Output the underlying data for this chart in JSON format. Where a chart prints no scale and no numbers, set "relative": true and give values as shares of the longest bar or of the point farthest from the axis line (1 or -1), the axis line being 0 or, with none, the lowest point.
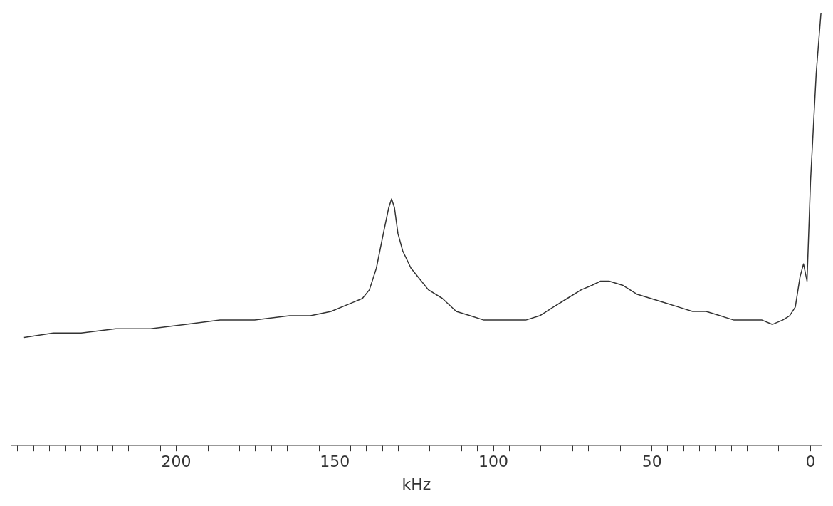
{
  "chart_data": {
    "type": "line",
    "xlabel": "kHz",
    "relative": true,
    "color": "#333333",
    "marker": "none",
    "grid": false,
    "legend": false,
    "xlim": [
      252,
      -3.5
    ],
    "xticks": [
      {
        "value": 250,
        "label": null
      },
      {
        "value": 245,
        "label": null
      },
      {
        "value": 240,
        "label": null
      },
      {
        "value": 235,
        "label": null
      },
      {
        "value": 230,
        "label": null
      },
      {
        "value": 225,
        "label": null
      },
      {
        "value": 220,
        "label": null
      },
      {
        "value": 215,
        "label": null
      },
      {
        "value": 210,
        "label": null
      },
      {
        "value": 205,
        "label": null
      },
      200,
      {
        "value": 195,
        "label": null
      },
      {
        "value": 190,
        "label": null
      },
      {
        "value": 185,
        "label": null
      },
      {
        "value": 180,
        "label": null
      },
      {
        "value": 175,
        "label": null
      },
      {
        "value": 170,
        "label": null
      },
      {
        "value": 165,
        "label": null
      },
      {
        "value": 160,
        "label": null
      },
      {
        "value": 155,
        "label": null
      },
      150,
      {
        "value": 145,
        "label": null
      },
      {
        "value": 140,
        "label": null
      },
      {
        "value": 135,
        "label": null
      },
      {
        "value": 130,
        "label": null
      },
      {
        "value": 125,
        "label": null
      },
      {
        "value": 120,
        "label": null
      },
      {
        "value": 115,
        "label": null
      },
      {
        "value": 110,
        "label": null
      },
      {
        "value": 105,
        "label": null
      },
      100,
      {
        "value": 95,
        "label": null
      },
      {
        "value": 90,
        "label": null
      },
      {
        "value": 85,
        "label": null
      },
      {
        "value": 80,
        "label": null
      },
      {
        "value": 75,
        "label": null
      },
      {
        "value": 70,
        "label": null
      },
      {
        "value": 65,
        "label": null
      },
      {
        "value": 60,
        "label": null
      },
      {
        "value": 55,
        "label": null
      },
      50,
      {
        "value": 45,
        "label": null
      },
      {
        "value": 40,
        "label": null
      },
      {
        "value": 35,
        "label": null
      },
      {
        "value": 30,
        "label": null
      },
      {
        "value": 25,
        "label": null
      },
      {
        "value": 20,
        "label": null
      },
      {
        "value": 15,
        "label": null
      },
      {
        "value": 10,
        "label": null
      },
      {
        "value": 5,
        "label": null
      },
      0
    ],
    "x": [
      248.0,
      238.8,
      230.0,
      219.1,
      208.1,
      197.2,
      186.2,
      175.3,
      164.3,
      157.7,
      151.2,
      144.6,
      141.3,
      139.1,
      136.9,
      134.7,
      133.0,
      132.1,
      131.2,
      130.1,
      128.6,
      126.0,
      122.7,
      120.5,
      116.1,
      111.7,
      107.3,
      103.0,
      98.6,
      94.2,
      89.8,
      85.4,
      81.1,
      76.7,
      72.3,
      69.0,
      66.2,
      63.5,
      59.1,
      54.8,
      50.4,
      46.0,
      41.6,
      37.2,
      32.9,
      28.5,
      24.1,
      19.7,
      15.3,
      12.0,
      8.8,
      6.6,
      4.8,
      3.3,
      2.2,
      1.1,
      0,
      -1.8,
      -3.3
    ],
    "values": [
      0.25,
      0.26,
      0.26,
      0.27,
      0.27,
      0.28,
      0.29,
      0.29,
      0.3,
      0.3,
      0.31,
      0.33,
      0.34,
      0.36,
      0.41,
      0.49,
      0.55,
      0.57,
      0.55,
      0.49,
      0.45,
      0.41,
      0.38,
      0.36,
      0.34,
      0.31,
      0.3,
      0.29,
      0.29,
      0.29,
      0.29,
      0.3,
      0.32,
      0.34,
      0.36,
      0.37,
      0.38,
      0.38,
      0.37,
      0.35,
      0.34,
      0.33,
      0.32,
      0.31,
      0.31,
      0.3,
      0.29,
      0.29,
      0.29,
      0.28,
      0.29,
      0.3,
      0.32,
      0.39,
      0.42,
      0.38,
      0.61,
      0.86,
      1.0
    ]
  }
}
